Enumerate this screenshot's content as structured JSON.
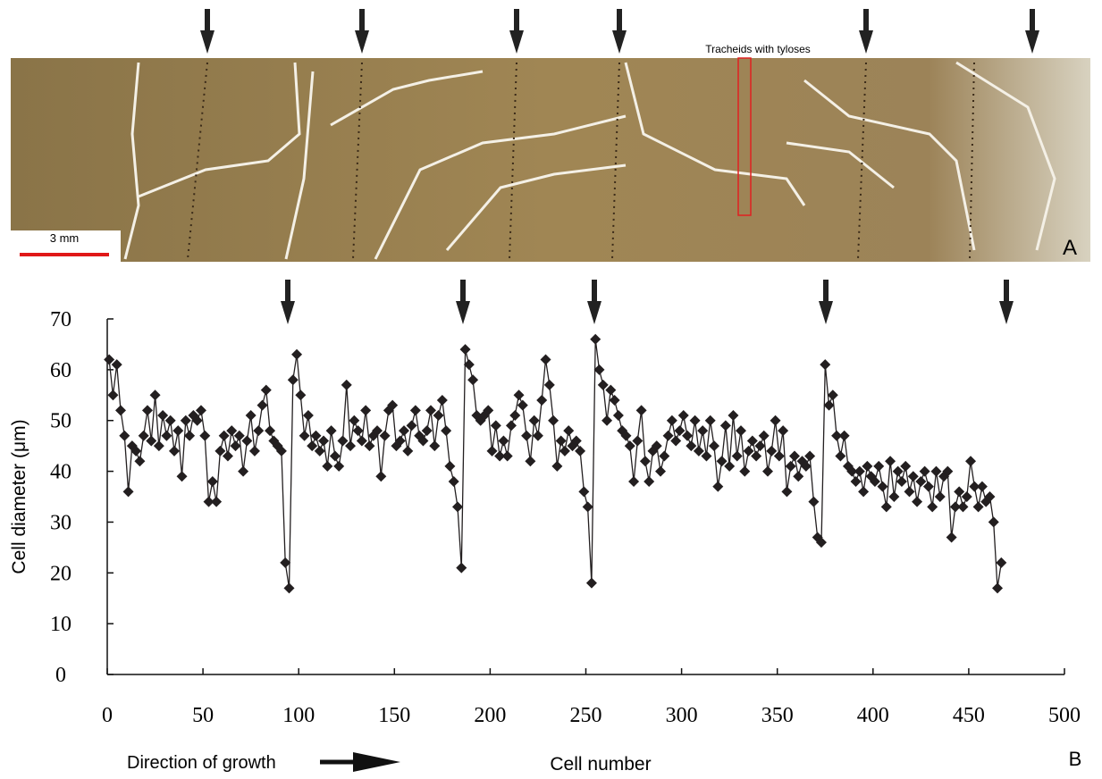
{
  "chart_data": {
    "type": "line",
    "annotations": [
      "Tracheids with tyloses",
      "3 mm",
      "A",
      "Direction of growth",
      "B"
    ],
    "x_label": "Cell number",
    "y_label": "Cell diameter (μm)",
    "xlim": [
      0,
      500
    ],
    "ylim": [
      0,
      70
    ],
    "xticks": [
      0,
      50,
      100,
      150,
      200,
      250,
      300,
      350,
      400,
      450,
      500
    ],
    "yticks": [
      0,
      10,
      20,
      30,
      40,
      50,
      60,
      70
    ],
    "x": [
      1,
      3,
      5,
      7,
      9,
      11,
      13,
      15,
      17,
      19,
      21,
      23,
      25,
      27,
      29,
      31,
      33,
      35,
      37,
      39,
      41,
      43,
      45,
      47,
      49,
      51,
      53,
      55,
      57,
      59,
      61,
      63,
      65,
      67,
      69,
      71,
      73,
      75,
      77,
      79,
      81,
      83,
      85,
      87,
      89,
      91,
      93,
      95,
      97,
      99,
      101,
      103,
      105,
      107,
      109,
      111,
      113,
      115,
      117,
      119,
      121,
      123,
      125,
      127,
      129,
      131,
      133,
      135,
      137,
      139,
      141,
      143,
      145,
      147,
      149,
      151,
      153,
      155,
      157,
      159,
      161,
      163,
      165,
      167,
      169,
      171,
      173,
      175,
      177,
      179,
      181,
      183,
      185,
      187,
      189,
      191,
      193,
      195,
      197,
      199,
      201,
      203,
      205,
      207,
      209,
      211,
      213,
      215,
      217,
      219,
      221,
      223,
      225,
      227,
      229,
      231,
      233,
      235,
      237,
      239,
      241,
      243,
      245,
      247,
      249,
      251,
      253,
      255,
      257,
      259,
      261,
      263,
      265,
      267,
      269,
      271,
      273,
      275,
      277,
      279,
      281,
      283,
      285,
      287,
      289,
      291,
      293,
      295,
      297,
      299,
      301,
      303,
      305,
      307,
      309,
      311,
      313,
      315,
      317,
      319,
      321,
      323,
      325,
      327,
      329,
      331,
      333,
      335,
      337,
      339,
      341,
      343,
      345,
      347,
      349,
      351,
      353,
      355,
      357,
      359,
      361,
      363,
      365,
      367,
      369,
      371,
      373,
      375,
      377,
      379,
      381,
      383,
      385,
      387,
      389,
      391,
      393,
      395,
      397,
      399,
      401,
      403,
      405,
      407,
      409,
      411,
      413,
      415,
      417,
      419,
      421,
      423,
      425,
      427,
      429,
      431,
      433,
      435,
      437,
      439,
      441,
      443,
      445,
      447,
      449,
      451,
      453,
      455,
      457,
      459,
      461,
      463,
      465,
      467
    ],
    "series": [
      {
        "color": "#231f20",
        "values": [
          62,
          55,
          61,
          52,
          47,
          36,
          45,
          44,
          42,
          47,
          52,
          46,
          55,
          45,
          51,
          47,
          50,
          44,
          48,
          39,
          50,
          47,
          51,
          50,
          52,
          47,
          34,
          38,
          34,
          44,
          47,
          43,
          48,
          45,
          47,
          40,
          46,
          51,
          44,
          48,
          53,
          56,
          48,
          46,
          45,
          44,
          22,
          17,
          58,
          63,
          55,
          47,
          51,
          45,
          47,
          44,
          46,
          41,
          48,
          43,
          41,
          46,
          57,
          45,
          50,
          48,
          46,
          52,
          45,
          47,
          48,
          39,
          47,
          52,
          53,
          45,
          46,
          48,
          44,
          49,
          52,
          47,
          46,
          48,
          52,
          45,
          51,
          54,
          48,
          41,
          38,
          33,
          21,
          64,
          61,
          58,
          51,
          50,
          51,
          52,
          44,
          49,
          43,
          46,
          43,
          49,
          51,
          55,
          53,
          47,
          42,
          50,
          47,
          54,
          62,
          57,
          50,
          41,
          46,
          44,
          48,
          45,
          46,
          44,
          36,
          33,
          18,
          66,
          60,
          57,
          50,
          56,
          54,
          51,
          48,
          47,
          45,
          38,
          46,
          52,
          42,
          38,
          44,
          45,
          40,
          43,
          47,
          50,
          46,
          48,
          51,
          47,
          45,
          50,
          44,
          48,
          43,
          50,
          45,
          37,
          42,
          49,
          41,
          51,
          43,
          48,
          40,
          44,
          46,
          43,
          45,
          47,
          40,
          44,
          50,
          43,
          48,
          36,
          41,
          43,
          39,
          42,
          41,
          43,
          34,
          27,
          26,
          61,
          53,
          55,
          47,
          43,
          47,
          41,
          40,
          38,
          40,
          36,
          41,
          39,
          38,
          41,
          37,
          33,
          42,
          35,
          40,
          38,
          41,
          36,
          39,
          34,
          38,
          40,
          37,
          33,
          40,
          35,
          39,
          40,
          27,
          33,
          36,
          33,
          35,
          42,
          37,
          33,
          37,
          34,
          35,
          30,
          17,
          22
        ]
      }
    ]
  }
}
